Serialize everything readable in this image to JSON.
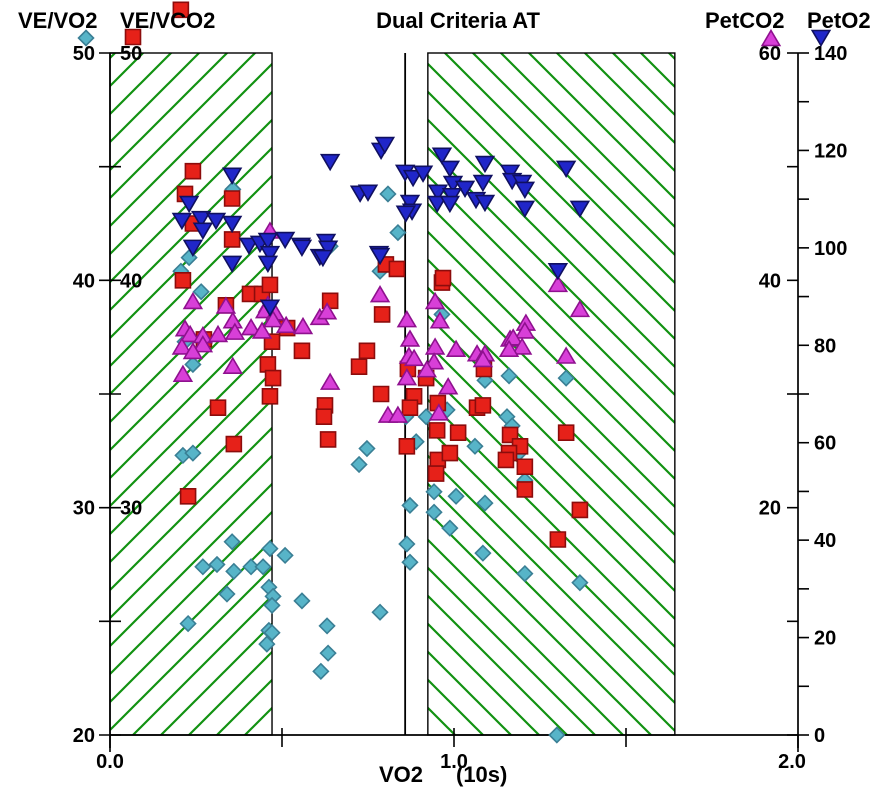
{
  "titles": {
    "ve_vo2": "VE/VO2",
    "ve_vco2": "VE/VCO2",
    "main": "Dual Criteria AT",
    "petco2": "PetCO2",
    "peto2": "PetO2"
  },
  "x_axis": {
    "title": "VO2",
    "units": "(10s)",
    "range": [
      0,
      2
    ],
    "tick_values": [
      0,
      1,
      2
    ],
    "tick_labels": [
      "0.0",
      "1.0",
      "2.0"
    ],
    "minor_tick_values": [
      0.5,
      1.0,
      1.5
    ]
  },
  "y_axes": {
    "ve_vo2": {
      "range": [
        20,
        50
      ],
      "tick_step": 5,
      "labels": [
        50,
        40,
        30,
        20
      ]
    },
    "ve_vco2": {
      "range": [
        20,
        50
      ],
      "tick_step": 5,
      "labels": [
        50,
        40,
        30
      ]
    },
    "petco2": {
      "range": [
        0,
        60
      ],
      "tick_step": 10,
      "labels": [
        60,
        40,
        20
      ]
    },
    "peto2": {
      "range": [
        0,
        140
      ],
      "tick_step": 10,
      "labels": [
        140,
        120,
        100,
        80,
        60,
        40,
        20,
        0
      ]
    }
  },
  "colors": {
    "hatch": "#129212",
    "axis": "#000000",
    "ve_vo2": "#57b4c8",
    "ve_vo2_edge": "#3a7f95",
    "ve_vco2": "#e62119",
    "ve_vco2_edge": "#8c0c0c",
    "petco2": "#d83fd8",
    "petco2_edge": "#8f118f",
    "peto2": "#2026c9",
    "peto2_edge": "#101060"
  },
  "regions": {
    "below_at": [
      0.0,
      0.471
    ],
    "above_at": [
      0.924,
      1.642
    ],
    "at_line_x": 0.858
  },
  "chart_data": {
    "type": "scatter",
    "title": "Dual Criteria AT",
    "xlabel": "VO2 (10s)",
    "x_range": [
      0,
      2
    ],
    "grid": false,
    "series": [
      {
        "name": "VE/VO2",
        "marker": "diamond",
        "axis": "ve",
        "axis_range": [
          20,
          50
        ],
        "color": "#57b4c8",
        "edge": "#3a7f95",
        "points": [
          [
            0.357,
            44.0
          ],
          [
            0.23,
            41.0
          ],
          [
            0.206,
            40.4
          ],
          [
            0.265,
            39.5
          ],
          [
            0.218,
            37.3
          ],
          [
            0.241,
            36.3
          ],
          [
            0.212,
            32.3
          ],
          [
            0.241,
            32.4
          ],
          [
            0.355,
            28.5
          ],
          [
            0.465,
            28.2
          ],
          [
            0.509,
            27.9
          ],
          [
            0.27,
            27.4
          ],
          [
            0.311,
            27.5
          ],
          [
            0.36,
            27.2
          ],
          [
            0.41,
            27.4
          ],
          [
            0.445,
            27.4
          ],
          [
            0.462,
            26.5
          ],
          [
            0.474,
            26.1
          ],
          [
            0.471,
            25.7
          ],
          [
            0.558,
            25.9
          ],
          [
            0.34,
            26.2
          ],
          [
            0.227,
            24.9
          ],
          [
            0.462,
            24.6
          ],
          [
            0.471,
            24.5
          ],
          [
            0.456,
            24.0
          ],
          [
            0.631,
            24.8
          ],
          [
            0.634,
            23.6
          ],
          [
            0.613,
            22.8
          ],
          [
            0.785,
            25.4
          ],
          [
            1.299,
            20.0
          ],
          [
            0.808,
            43.8
          ],
          [
            0.837,
            42.1
          ],
          [
            0.785,
            40.4
          ],
          [
            0.64,
            41.5
          ],
          [
            0.965,
            38.5
          ],
          [
            0.86,
            34.0
          ],
          [
            0.919,
            34.0
          ],
          [
            0.98,
            34.3
          ],
          [
            1.09,
            35.6
          ],
          [
            0.89,
            32.9
          ],
          [
            0.747,
            32.6
          ],
          [
            0.724,
            31.9
          ],
          [
            1.061,
            32.7
          ],
          [
            0.942,
            30.7
          ],
          [
            1.006,
            30.5
          ],
          [
            0.942,
            29.8
          ],
          [
            1.09,
            30.2
          ],
          [
            0.872,
            30.1
          ],
          [
            0.988,
            29.1
          ],
          [
            0.863,
            28.4
          ],
          [
            1.084,
            28.0
          ],
          [
            0.872,
            27.6
          ],
          [
            1.16,
            35.8
          ],
          [
            1.326,
            35.7
          ],
          [
            1.154,
            34.0
          ],
          [
            1.169,
            33.6
          ],
          [
            1.189,
            32.4
          ],
          [
            1.206,
            31.2
          ],
          [
            1.206,
            27.1
          ],
          [
            1.366,
            26.7
          ]
        ]
      },
      {
        "name": "VE/VCO2",
        "marker": "square",
        "axis": "ve",
        "axis_range": [
          20,
          50
        ],
        "color": "#e62119",
        "edge": "#8c0c0c",
        "points": [
          [
            0.206,
            51.9
          ],
          [
            0.241,
            44.8
          ],
          [
            0.218,
            43.8
          ],
          [
            0.355,
            43.6
          ],
          [
            0.241,
            42.5
          ],
          [
            0.355,
            41.8
          ],
          [
            0.212,
            40.0
          ],
          [
            0.407,
            39.4
          ],
          [
            0.442,
            39.4
          ],
          [
            0.465,
            39.8
          ],
          [
            0.337,
            38.9
          ],
          [
            0.273,
            37.4
          ],
          [
            0.471,
            37.3
          ],
          [
            0.515,
            37.9
          ],
          [
            0.558,
            36.9
          ],
          [
            0.459,
            36.3
          ],
          [
            0.474,
            35.7
          ],
          [
            0.465,
            34.9
          ],
          [
            0.314,
            34.4
          ],
          [
            0.625,
            34.5
          ],
          [
            0.622,
            34.0
          ],
          [
            0.36,
            32.8
          ],
          [
            0.227,
            30.5
          ],
          [
            0.64,
            39.1
          ],
          [
            0.965,
            39.9
          ],
          [
            0.791,
            38.5
          ],
          [
            0.747,
            36.9
          ],
          [
            0.724,
            36.2
          ],
          [
            0.866,
            36.1
          ],
          [
            0.919,
            35.7
          ],
          [
            0.788,
            35.0
          ],
          [
            0.884,
            34.9
          ],
          [
            0.872,
            34.4
          ],
          [
            0.953,
            34.6
          ],
          [
            1.067,
            34.4
          ],
          [
            1.084,
            34.5
          ],
          [
            1.087,
            36.1
          ],
          [
            0.951,
            33.4
          ],
          [
            1.012,
            33.3
          ],
          [
            0.634,
            33.0
          ],
          [
            0.863,
            32.7
          ],
          [
            0.802,
            40.7
          ],
          [
            0.834,
            40.5
          ],
          [
            0.968,
            40.1
          ],
          [
            1.326,
            33.3
          ],
          [
            1.163,
            33.2
          ],
          [
            1.192,
            32.7
          ],
          [
            1.16,
            32.4
          ],
          [
            1.151,
            32.1
          ],
          [
            1.206,
            31.8
          ],
          [
            0.953,
            32.1
          ],
          [
            0.988,
            32.4
          ],
          [
            0.948,
            31.5
          ],
          [
            1.206,
            30.8
          ],
          [
            1.366,
            29.9
          ],
          [
            1.302,
            28.6
          ]
        ]
      },
      {
        "name": "PetCO2",
        "marker": "triangle-up",
        "axis": "petco2",
        "axis_range": [
          0,
          60
        ],
        "color": "#d83fd8",
        "edge": "#8f118f",
        "points": [
          [
            0.465,
            44.3
          ],
          [
            0.241,
            38.1
          ],
          [
            0.337,
            37.7
          ],
          [
            0.459,
            37.8
          ],
          [
            0.451,
            37.3
          ],
          [
            0.48,
            37.1
          ],
          [
            0.357,
            36.4
          ],
          [
            0.218,
            35.7
          ],
          [
            0.233,
            35.2
          ],
          [
            0.41,
            35.8
          ],
          [
            0.442,
            35.5
          ],
          [
            0.27,
            35.1
          ],
          [
            0.314,
            35.2
          ],
          [
            0.363,
            35.4
          ],
          [
            0.27,
            34.3
          ],
          [
            0.209,
            34.1
          ],
          [
            0.241,
            33.7
          ],
          [
            0.474,
            36.5
          ],
          [
            0.512,
            36.0
          ],
          [
            0.561,
            35.9
          ],
          [
            0.61,
            36.7
          ],
          [
            0.357,
            32.4
          ],
          [
            0.212,
            31.7
          ],
          [
            0.785,
            38.7
          ],
          [
            0.631,
            37.2
          ],
          [
            0.945,
            38.1
          ],
          [
            0.863,
            36.5
          ],
          [
            0.959,
            36.4
          ],
          [
            0.872,
            34.8
          ],
          [
            0.945,
            34.1
          ],
          [
            1.006,
            33.9
          ],
          [
            0.869,
            33.3
          ],
          [
            0.884,
            33.1
          ],
          [
            0.942,
            32.8
          ],
          [
            0.921,
            32.1
          ],
          [
            0.863,
            31.4
          ],
          [
            0.64,
            31.0
          ],
          [
            0.983,
            30.6
          ],
          [
            0.808,
            28.1
          ],
          [
            0.837,
            28.1
          ],
          [
            0.956,
            28.3
          ],
          [
            1.067,
            33.5
          ],
          [
            1.09,
            33.5
          ],
          [
            1.084,
            33.0
          ],
          [
            1.302,
            39.6
          ],
          [
            1.366,
            37.4
          ],
          [
            1.209,
            36.2
          ],
          [
            1.206,
            35.5
          ],
          [
            1.163,
            34.8
          ],
          [
            1.172,
            34.9
          ],
          [
            1.198,
            34.1
          ],
          [
            1.16,
            33.9
          ],
          [
            1.326,
            33.3
          ]
        ]
      },
      {
        "name": "PetO2",
        "marker": "triangle-down",
        "axis": "peto2",
        "axis_range": [
          0,
          140
        ],
        "color": "#2026c9",
        "edge": "#101060",
        "points": [
          [
            0.355,
            115.0
          ],
          [
            0.23,
            109.2
          ],
          [
            0.209,
            105.7
          ],
          [
            0.265,
            106.1
          ],
          [
            0.308,
            105.7
          ],
          [
            0.355,
            105.1
          ],
          [
            0.27,
            103.7
          ],
          [
            0.241,
            100.2
          ],
          [
            0.404,
            100.6
          ],
          [
            0.436,
            101.0
          ],
          [
            0.459,
            101.6
          ],
          [
            0.509,
            101.8
          ],
          [
            0.555,
            100.6
          ],
          [
            0.465,
            98.9
          ],
          [
            0.459,
            96.9
          ],
          [
            0.61,
            98.3
          ],
          [
            0.355,
            96.9
          ],
          [
            0.465,
            87.9
          ],
          [
            0.64,
            117.8
          ],
          [
            0.788,
            120.1
          ],
          [
            0.799,
            121.3
          ],
          [
            0.858,
            115.6
          ],
          [
            0.881,
            114.5
          ],
          [
            0.91,
            115.4
          ],
          [
            0.965,
            119.1
          ],
          [
            0.988,
            116.4
          ],
          [
            1.09,
            117.4
          ],
          [
            0.997,
            113.3
          ],
          [
            1.032,
            112.3
          ],
          [
            0.953,
            111.5
          ],
          [
            0.994,
            110.8
          ],
          [
            1.084,
            113.5
          ],
          [
            1.064,
            110.0
          ],
          [
            1.09,
            109.4
          ],
          [
            0.951,
            109.2
          ],
          [
            0.988,
            109.2
          ],
          [
            0.872,
            109.4
          ],
          [
            0.878,
            107.6
          ],
          [
            0.86,
            107.2
          ],
          [
            0.782,
            98.9
          ],
          [
            0.727,
            111.3
          ],
          [
            0.75,
            111.5
          ],
          [
            0.558,
            100.2
          ],
          [
            0.628,
            101.4
          ],
          [
            0.634,
            100.0
          ],
          [
            0.619,
            98.1
          ],
          [
            0.785,
            98.5
          ],
          [
            1.163,
            115.6
          ],
          [
            1.169,
            113.9
          ],
          [
            1.198,
            113.5
          ],
          [
            1.206,
            112.1
          ],
          [
            1.326,
            116.4
          ],
          [
            1.206,
            108.2
          ],
          [
            1.366,
            108.2
          ],
          [
            1.302,
            95.4
          ]
        ]
      }
    ]
  }
}
